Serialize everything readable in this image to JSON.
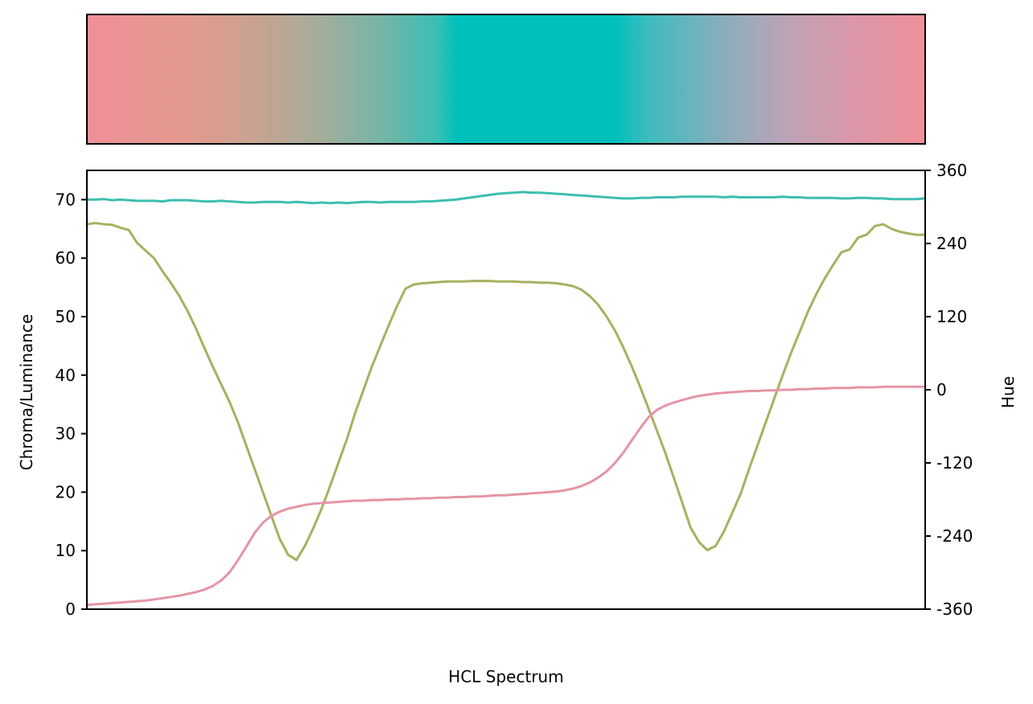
{
  "chart_data": {
    "type": "line",
    "xlabel": "HCL Spectrum",
    "ylabel_left": "Chroma/Luminance",
    "ylabel_right": "Hue",
    "ylim_left": [
      0,
      75
    ],
    "ylim_right": [
      -360,
      360
    ],
    "yticks_left": [
      "0",
      "10",
      "20",
      "30",
      "40",
      "50",
      "60",
      "70"
    ],
    "yticks_right": [
      "-360",
      "-240",
      "-120",
      "0",
      "120",
      "240",
      "360"
    ],
    "grid": false,
    "x_ticks_visible": false,
    "spectrum_bar": {
      "stops": [
        "#f08f99",
        "#e39a8f",
        "#c9a291",
        "#a4ad9b",
        "#6fb6a8",
        "#36c0b5",
        "#00c0bb",
        "#00c0bb",
        "#3dbcbf",
        "#8aadbc",
        "#b9a4b6",
        "#da98aa",
        "#f08f99"
      ],
      "stop_positions": [
        0.0,
        0.12,
        0.2,
        0.28,
        0.36,
        0.42,
        0.44,
        0.63,
        0.67,
        0.76,
        0.83,
        0.91,
        1.0
      ]
    },
    "x": [
      0,
      0.01,
      0.02,
      0.03,
      0.04,
      0.05,
      0.06,
      0.07,
      0.08,
      0.09,
      0.1,
      0.11,
      0.12,
      0.13,
      0.14,
      0.15,
      0.16,
      0.17,
      0.18,
      0.19,
      0.2,
      0.21,
      0.22,
      0.23,
      0.24,
      0.25,
      0.26,
      0.27,
      0.28,
      0.29,
      0.3,
      0.31,
      0.32,
      0.33,
      0.34,
      0.35,
      0.36,
      0.37,
      0.38,
      0.39,
      0.4,
      0.41,
      0.42,
      0.43,
      0.44,
      0.45,
      0.46,
      0.47,
      0.48,
      0.49,
      0.5,
      0.51,
      0.52,
      0.53,
      0.54,
      0.55,
      0.56,
      0.57,
      0.58,
      0.59,
      0.6,
      0.61,
      0.62,
      0.63,
      0.64,
      0.65,
      0.66,
      0.67,
      0.68,
      0.69,
      0.7,
      0.71,
      0.72,
      0.73,
      0.74,
      0.75,
      0.76,
      0.77,
      0.78,
      0.79,
      0.8,
      0.81,
      0.82,
      0.83,
      0.84,
      0.85,
      0.86,
      0.87,
      0.88,
      0.89,
      0.9,
      0.91,
      0.92,
      0.93,
      0.94,
      0.95,
      0.96,
      0.97,
      0.98,
      0.99,
      1.0
    ],
    "series": [
      {
        "color": "#3cbeb0",
        "axis": "left",
        "values": [
          70.0,
          70.0,
          70.1,
          69.9,
          70.0,
          69.9,
          69.8,
          69.8,
          69.8,
          69.7,
          69.9,
          69.9,
          69.9,
          69.8,
          69.7,
          69.7,
          69.8,
          69.7,
          69.6,
          69.5,
          69.5,
          69.6,
          69.6,
          69.6,
          69.5,
          69.6,
          69.5,
          69.4,
          69.5,
          69.4,
          69.5,
          69.4,
          69.5,
          69.6,
          69.6,
          69.5,
          69.6,
          69.6,
          69.6,
          69.6,
          69.7,
          69.7,
          69.8,
          69.9,
          70.0,
          70.2,
          70.4,
          70.6,
          70.8,
          71.0,
          71.1,
          71.2,
          71.3,
          71.2,
          71.2,
          71.1,
          71.0,
          70.9,
          70.8,
          70.7,
          70.6,
          70.5,
          70.4,
          70.3,
          70.2,
          70.2,
          70.3,
          70.3,
          70.4,
          70.4,
          70.4,
          70.5,
          70.5,
          70.5,
          70.5,
          70.5,
          70.4,
          70.5,
          70.4,
          70.4,
          70.4,
          70.4,
          70.4,
          70.5,
          70.4,
          70.4,
          70.3,
          70.3,
          70.3,
          70.3,
          70.2,
          70.2,
          70.3,
          70.3,
          70.2,
          70.2,
          70.1,
          70.1,
          70.1,
          70.1,
          70.2
        ]
      },
      {
        "color": "#a8b061",
        "axis": "left",
        "values": [
          65.8,
          66.0,
          65.8,
          65.7,
          65.2,
          64.8,
          62.6,
          61.3,
          60.0,
          57.8,
          55.8,
          53.6,
          51.0,
          48.0,
          44.7,
          41.5,
          38.5,
          35.5,
          32.0,
          28.0,
          24.0,
          20.0,
          16.0,
          12.0,
          9.3,
          8.4,
          10.8,
          13.8,
          17.2,
          21.0,
          25.0,
          29.0,
          33.5,
          37.5,
          41.5,
          45.0,
          48.5,
          51.8,
          54.8,
          55.5,
          55.7,
          55.8,
          55.9,
          56.0,
          56.0,
          56.0,
          56.1,
          56.1,
          56.1,
          56.0,
          56.0,
          56.0,
          55.9,
          55.9,
          55.8,
          55.8,
          55.7,
          55.5,
          55.2,
          54.6,
          53.5,
          52.0,
          50.0,
          47.6,
          44.7,
          41.5,
          38.0,
          34.3,
          30.5,
          26.7,
          22.5,
          18.3,
          14.0,
          11.5,
          10.1,
          10.8,
          13.3,
          16.5,
          19.8,
          24.0,
          28.0,
          32.0,
          36.0,
          40.0,
          43.8,
          47.3,
          50.8,
          53.8,
          56.5,
          58.8,
          61.0,
          61.5,
          63.5,
          64.0,
          65.5,
          65.8,
          65.0,
          64.5,
          64.2,
          64.0,
          64.0
        ]
      },
      {
        "color": "#e495a5",
        "axis": "right",
        "values": [
          -353,
          -352,
          -351,
          -350,
          -349,
          -348,
          -347,
          -346,
          -344,
          -342,
          -340,
          -338,
          -335,
          -332,
          -328,
          -322,
          -313,
          -300,
          -280,
          -258,
          -235,
          -218,
          -207,
          -200,
          -195,
          -192,
          -189,
          -187,
          -186,
          -185,
          -184,
          -183,
          -182,
          -182,
          -181,
          -181,
          -180,
          -180,
          -179,
          -179,
          -178,
          -178,
          -177,
          -177,
          -176,
          -176,
          -175,
          -175,
          -174,
          -173,
          -173,
          -172,
          -171,
          -170,
          -169,
          -168,
          -167,
          -165,
          -162,
          -158,
          -152,
          -144,
          -134,
          -120,
          -103,
          -83,
          -63,
          -45,
          -33,
          -26,
          -21,
          -17,
          -13,
          -10,
          -8,
          -6,
          -5,
          -4,
          -3,
          -2,
          -2,
          -1,
          -1,
          0,
          0,
          1,
          1,
          2,
          2,
          3,
          3,
          3,
          4,
          4,
          4,
          5,
          5,
          5,
          5,
          5,
          5
        ]
      }
    ]
  }
}
